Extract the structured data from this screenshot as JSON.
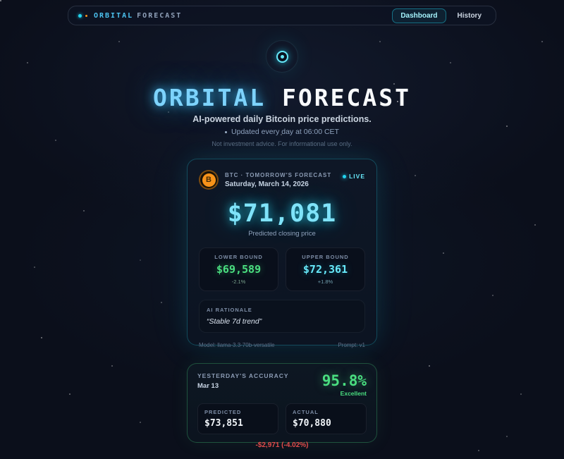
{
  "navbar": {
    "brand_primary": "ORBITAL",
    "brand_secondary": "FORECAST",
    "tabs": [
      {
        "label": "Dashboard",
        "active": true
      },
      {
        "label": "History",
        "active": false
      }
    ]
  },
  "hero": {
    "title_primary": "ORBITAL",
    "title_secondary": "FORECAST",
    "subtitle": "AI-powered daily Bitcoin price predictions.",
    "update_note": "Updated every day at 06:00 CET",
    "disclaimer": "Not investment advice. For informational use only."
  },
  "forecast_card": {
    "bitcoin_symbol": "B",
    "asset_label": "BTC · TOMORROW'S FORECAST",
    "date": "Saturday, March 14, 2026",
    "live_label": "LIVE",
    "price": "$71,081",
    "price_caption": "Predicted closing price",
    "lower_bound": {
      "label": "LOWER BOUND",
      "value": "$69,589",
      "pct": "-2.1%"
    },
    "upper_bound": {
      "label": "UPPER BOUND",
      "value": "$72,361",
      "pct": "+1.8%"
    },
    "rationale": {
      "label": "AI RATIONALE",
      "text": "“Stable 7d trend”"
    },
    "model_label": "Model: llama-3.3-70b-versatile",
    "prompt_label": "Prompt: v1"
  },
  "accuracy_card": {
    "title": "YESTERDAY'S ACCURACY",
    "date": "Mar 13",
    "accuracy": "95.8%",
    "rating": "Excellent",
    "predicted": {
      "label": "PREDICTED",
      "value": "$73,851"
    },
    "actual": {
      "label": "ACTUAL",
      "value": "$70,880"
    },
    "difference": "-$2,971 (-4.02%)"
  },
  "colors": {
    "accent_cyan": "#22d3ee",
    "accent_green": "#4ade80",
    "bitcoin_orange": "#f7931a",
    "negative_red": "#e14b4b",
    "background": "#0b0f1b"
  }
}
